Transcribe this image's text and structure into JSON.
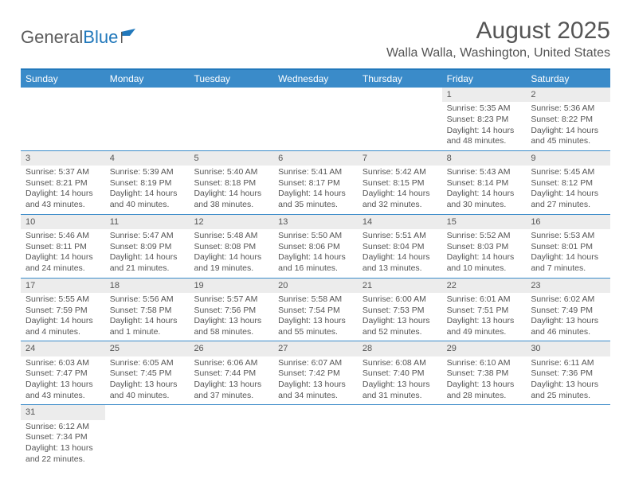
{
  "colors": {
    "brand_blue": "#2178bb",
    "header_blue": "#3a8bc9",
    "daynum_bg": "#ececec",
    "text": "#555555",
    "white": "#ffffff"
  },
  "logo": {
    "part1": "General",
    "part2": "Blue"
  },
  "title": "August 2025",
  "location": "Walla Walla, Washington, United States",
  "dayNames": [
    "Sunday",
    "Monday",
    "Tuesday",
    "Wednesday",
    "Thursday",
    "Friday",
    "Saturday"
  ],
  "weeks": [
    [
      {
        "num": "",
        "lines": []
      },
      {
        "num": "",
        "lines": []
      },
      {
        "num": "",
        "lines": []
      },
      {
        "num": "",
        "lines": []
      },
      {
        "num": "",
        "lines": []
      },
      {
        "num": "1",
        "lines": [
          "Sunrise: 5:35 AM",
          "Sunset: 8:23 PM",
          "Daylight: 14 hours",
          "and 48 minutes."
        ]
      },
      {
        "num": "2",
        "lines": [
          "Sunrise: 5:36 AM",
          "Sunset: 8:22 PM",
          "Daylight: 14 hours",
          "and 45 minutes."
        ]
      }
    ],
    [
      {
        "num": "3",
        "lines": [
          "Sunrise: 5:37 AM",
          "Sunset: 8:21 PM",
          "Daylight: 14 hours",
          "and 43 minutes."
        ]
      },
      {
        "num": "4",
        "lines": [
          "Sunrise: 5:39 AM",
          "Sunset: 8:19 PM",
          "Daylight: 14 hours",
          "and 40 minutes."
        ]
      },
      {
        "num": "5",
        "lines": [
          "Sunrise: 5:40 AM",
          "Sunset: 8:18 PM",
          "Daylight: 14 hours",
          "and 38 minutes."
        ]
      },
      {
        "num": "6",
        "lines": [
          "Sunrise: 5:41 AM",
          "Sunset: 8:17 PM",
          "Daylight: 14 hours",
          "and 35 minutes."
        ]
      },
      {
        "num": "7",
        "lines": [
          "Sunrise: 5:42 AM",
          "Sunset: 8:15 PM",
          "Daylight: 14 hours",
          "and 32 minutes."
        ]
      },
      {
        "num": "8",
        "lines": [
          "Sunrise: 5:43 AM",
          "Sunset: 8:14 PM",
          "Daylight: 14 hours",
          "and 30 minutes."
        ]
      },
      {
        "num": "9",
        "lines": [
          "Sunrise: 5:45 AM",
          "Sunset: 8:12 PM",
          "Daylight: 14 hours",
          "and 27 minutes."
        ]
      }
    ],
    [
      {
        "num": "10",
        "lines": [
          "Sunrise: 5:46 AM",
          "Sunset: 8:11 PM",
          "Daylight: 14 hours",
          "and 24 minutes."
        ]
      },
      {
        "num": "11",
        "lines": [
          "Sunrise: 5:47 AM",
          "Sunset: 8:09 PM",
          "Daylight: 14 hours",
          "and 21 minutes."
        ]
      },
      {
        "num": "12",
        "lines": [
          "Sunrise: 5:48 AM",
          "Sunset: 8:08 PM",
          "Daylight: 14 hours",
          "and 19 minutes."
        ]
      },
      {
        "num": "13",
        "lines": [
          "Sunrise: 5:50 AM",
          "Sunset: 8:06 PM",
          "Daylight: 14 hours",
          "and 16 minutes."
        ]
      },
      {
        "num": "14",
        "lines": [
          "Sunrise: 5:51 AM",
          "Sunset: 8:04 PM",
          "Daylight: 14 hours",
          "and 13 minutes."
        ]
      },
      {
        "num": "15",
        "lines": [
          "Sunrise: 5:52 AM",
          "Sunset: 8:03 PM",
          "Daylight: 14 hours",
          "and 10 minutes."
        ]
      },
      {
        "num": "16",
        "lines": [
          "Sunrise: 5:53 AM",
          "Sunset: 8:01 PM",
          "Daylight: 14 hours",
          "and 7 minutes."
        ]
      }
    ],
    [
      {
        "num": "17",
        "lines": [
          "Sunrise: 5:55 AM",
          "Sunset: 7:59 PM",
          "Daylight: 14 hours",
          "and 4 minutes."
        ]
      },
      {
        "num": "18",
        "lines": [
          "Sunrise: 5:56 AM",
          "Sunset: 7:58 PM",
          "Daylight: 14 hours",
          "and 1 minute."
        ]
      },
      {
        "num": "19",
        "lines": [
          "Sunrise: 5:57 AM",
          "Sunset: 7:56 PM",
          "Daylight: 13 hours",
          "and 58 minutes."
        ]
      },
      {
        "num": "20",
        "lines": [
          "Sunrise: 5:58 AM",
          "Sunset: 7:54 PM",
          "Daylight: 13 hours",
          "and 55 minutes."
        ]
      },
      {
        "num": "21",
        "lines": [
          "Sunrise: 6:00 AM",
          "Sunset: 7:53 PM",
          "Daylight: 13 hours",
          "and 52 minutes."
        ]
      },
      {
        "num": "22",
        "lines": [
          "Sunrise: 6:01 AM",
          "Sunset: 7:51 PM",
          "Daylight: 13 hours",
          "and 49 minutes."
        ]
      },
      {
        "num": "23",
        "lines": [
          "Sunrise: 6:02 AM",
          "Sunset: 7:49 PM",
          "Daylight: 13 hours",
          "and 46 minutes."
        ]
      }
    ],
    [
      {
        "num": "24",
        "lines": [
          "Sunrise: 6:03 AM",
          "Sunset: 7:47 PM",
          "Daylight: 13 hours",
          "and 43 minutes."
        ]
      },
      {
        "num": "25",
        "lines": [
          "Sunrise: 6:05 AM",
          "Sunset: 7:45 PM",
          "Daylight: 13 hours",
          "and 40 minutes."
        ]
      },
      {
        "num": "26",
        "lines": [
          "Sunrise: 6:06 AM",
          "Sunset: 7:44 PM",
          "Daylight: 13 hours",
          "and 37 minutes."
        ]
      },
      {
        "num": "27",
        "lines": [
          "Sunrise: 6:07 AM",
          "Sunset: 7:42 PM",
          "Daylight: 13 hours",
          "and 34 minutes."
        ]
      },
      {
        "num": "28",
        "lines": [
          "Sunrise: 6:08 AM",
          "Sunset: 7:40 PM",
          "Daylight: 13 hours",
          "and 31 minutes."
        ]
      },
      {
        "num": "29",
        "lines": [
          "Sunrise: 6:10 AM",
          "Sunset: 7:38 PM",
          "Daylight: 13 hours",
          "and 28 minutes."
        ]
      },
      {
        "num": "30",
        "lines": [
          "Sunrise: 6:11 AM",
          "Sunset: 7:36 PM",
          "Daylight: 13 hours",
          "and 25 minutes."
        ]
      }
    ],
    [
      {
        "num": "31",
        "lines": [
          "Sunrise: 6:12 AM",
          "Sunset: 7:34 PM",
          "Daylight: 13 hours",
          "and 22 minutes."
        ]
      },
      {
        "num": "",
        "lines": []
      },
      {
        "num": "",
        "lines": []
      },
      {
        "num": "",
        "lines": []
      },
      {
        "num": "",
        "lines": []
      },
      {
        "num": "",
        "lines": []
      },
      {
        "num": "",
        "lines": []
      }
    ]
  ]
}
